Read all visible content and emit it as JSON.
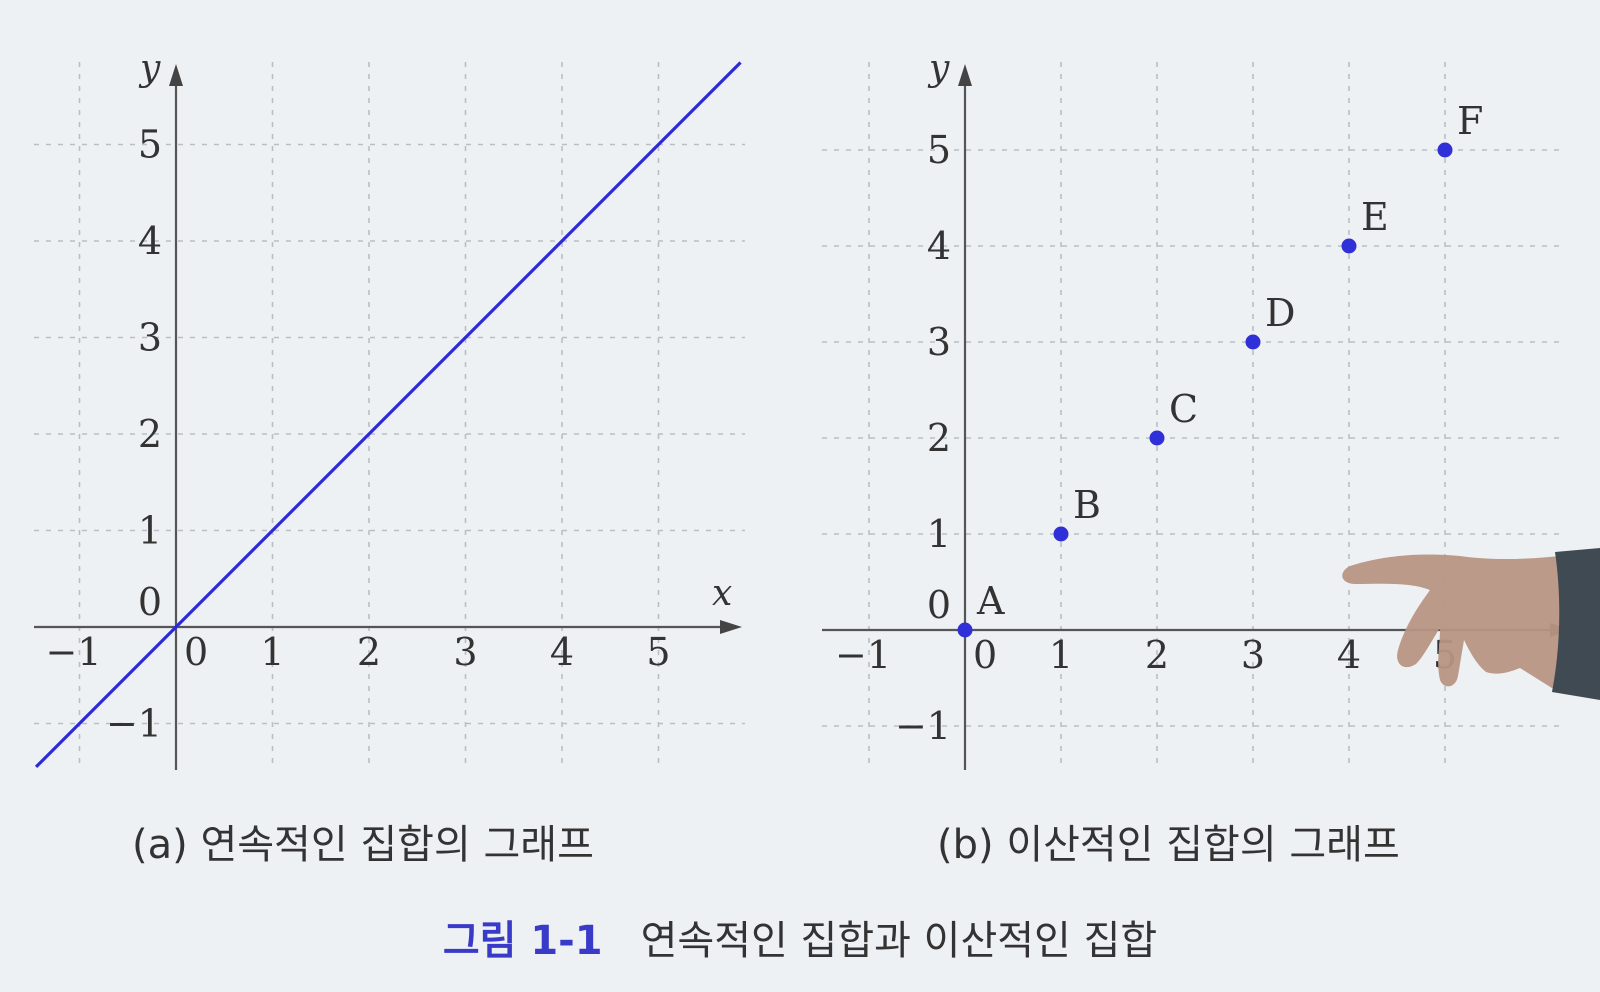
{
  "chart_data": [
    {
      "type": "line",
      "caption": "(a) 연속적인 집합의 그래프",
      "xlabel": "x",
      "ylabel": "y",
      "x_ticks": [
        "−1",
        "0",
        "1",
        "2",
        "3",
        "4",
        "5"
      ],
      "y_ticks": [
        "−1",
        "0",
        "1",
        "2",
        "3",
        "4",
        "5"
      ],
      "xlim": [
        -1.5,
        5.9
      ],
      "ylim": [
        -1.5,
        5.9
      ],
      "grid": true,
      "series": [
        {
          "x": [
            -1.45,
            5.85
          ],
          "y": [
            -1.45,
            5.85
          ]
        }
      ],
      "color": "#2b2bd6"
    },
    {
      "type": "scatter",
      "caption": "(b) 이산적인 집합의 그래프",
      "ylabel": "y",
      "x_ticks": [
        "−1",
        "0",
        "1",
        "2",
        "3",
        "4",
        "5"
      ],
      "y_ticks": [
        "−1",
        "0",
        "1",
        "2",
        "3",
        "4",
        "5"
      ],
      "xlim": [
        -1.5,
        5.9
      ],
      "ylim": [
        -1.5,
        5.9
      ],
      "grid": true,
      "points": [
        {
          "label": "A",
          "x": 0,
          "y": 0
        },
        {
          "label": "B",
          "x": 1,
          "y": 1
        },
        {
          "label": "C",
          "x": 2,
          "y": 2
        },
        {
          "label": "D",
          "x": 3,
          "y": 3
        },
        {
          "label": "E",
          "x": 4,
          "y": 4
        },
        {
          "label": "F",
          "x": 5,
          "y": 5
        }
      ],
      "color": "#3030d8"
    }
  ],
  "figure": {
    "number": "그림 1-1",
    "title": "연속적인 집합과 이산적인 집합"
  },
  "number_color": "#3a3ac8"
}
